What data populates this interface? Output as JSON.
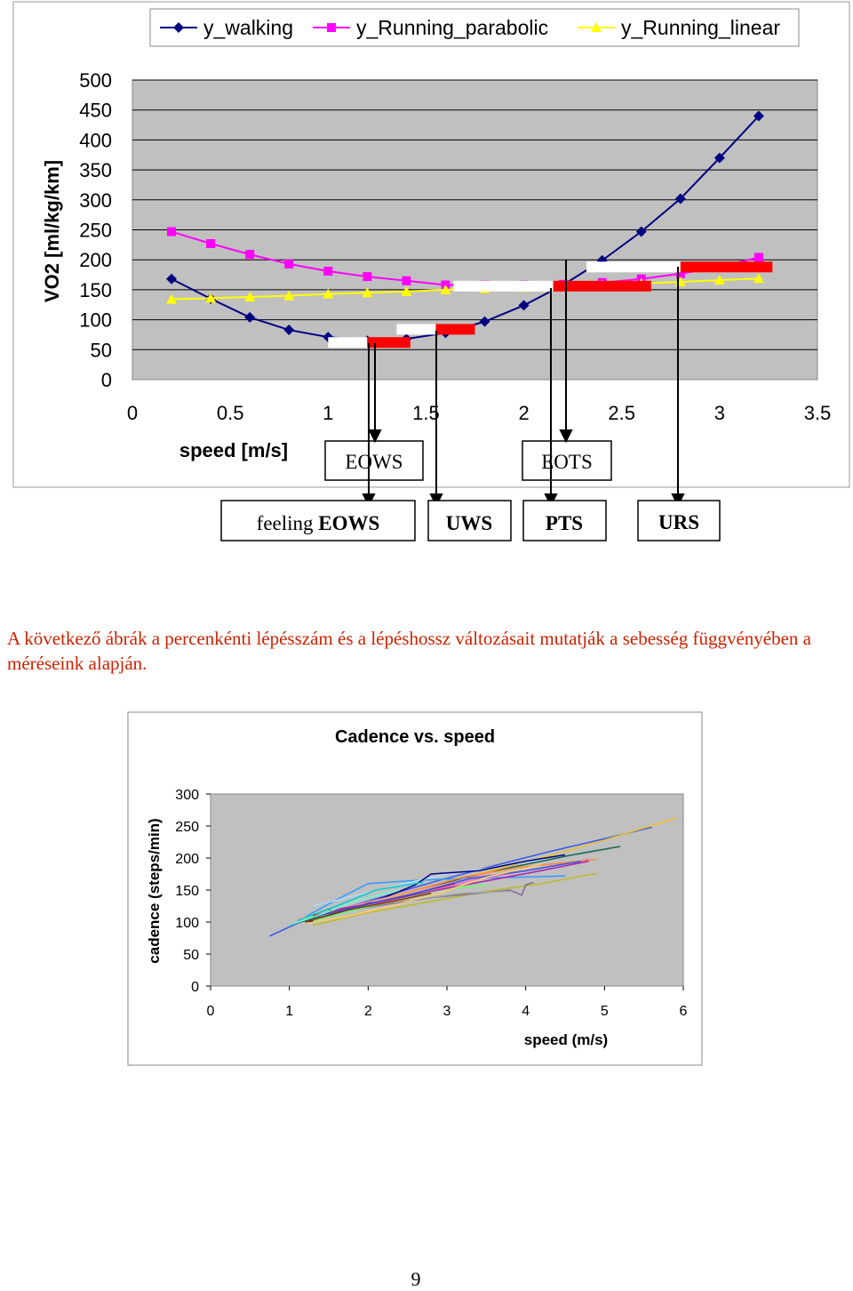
{
  "chart_data": [
    {
      "type": "line",
      "ylabel": "VO2 [ml/kg/km]",
      "xlabel": "speed [m/s]",
      "xlim": [
        0,
        3.5
      ],
      "ylim": [
        0,
        500
      ],
      "x_ticks": [
        "0",
        "0.5",
        "1",
        "1.5",
        "2",
        "2.5",
        "3",
        "3.5"
      ],
      "y_ticks": [
        "0",
        "50",
        "100",
        "150",
        "200",
        "250",
        "300",
        "350",
        "400",
        "450",
        "500"
      ],
      "grid": true,
      "legend_position": "top",
      "series": [
        {
          "name": "y_walking",
          "color": "#000080",
          "marker": "diamond",
          "x": [
            0.2,
            0.4,
            0.6,
            0.8,
            1.0,
            1.2,
            1.4,
            1.6,
            1.8,
            2.0,
            2.2,
            2.4,
            2.6,
            2.8,
            3.0,
            3.2
          ],
          "y": [
            168,
            135,
            104,
            83,
            71,
            65,
            68,
            78,
            97,
            124,
            158,
            199,
            247,
            302,
            370,
            440
          ]
        },
        {
          "name": "y_Running_parabolic",
          "color": "#ff00ff",
          "marker": "square",
          "x": [
            0.2,
            0.4,
            0.6,
            0.8,
            1.0,
            1.2,
            1.4,
            1.6,
            1.8,
            2.0,
            2.2,
            2.4,
            2.6,
            2.8,
            3.0,
            3.2
          ],
          "y": [
            247,
            227,
            209,
            193,
            181,
            172,
            165,
            158,
            158,
            158,
            159,
            162,
            168,
            177,
            188,
            204
          ]
        },
        {
          "name": "y_Running_linear",
          "color": "#ffff00",
          "marker": "triangle",
          "x": [
            0.2,
            0.4,
            0.6,
            0.8,
            1.0,
            1.2,
            1.4,
            1.6,
            1.8,
            2.0,
            2.2,
            2.4,
            2.6,
            2.8,
            3.0,
            3.2
          ],
          "y": [
            134,
            136,
            138,
            140,
            143,
            145,
            147,
            150,
            152,
            154,
            156,
            158,
            161,
            163,
            166,
            169
          ]
        }
      ],
      "speed_bars": [
        {
          "x0": 1.0,
          "x1": 1.2,
          "y": 62,
          "color": "#ffffff"
        },
        {
          "x0": 1.2,
          "x1": 1.42,
          "y": 62,
          "color": "#ff0000"
        },
        {
          "x0": 1.35,
          "x1": 1.55,
          "y": 84,
          "color": "#ffffff"
        },
        {
          "x0": 1.55,
          "x1": 1.75,
          "y": 84,
          "color": "#ff0000"
        },
        {
          "x0": 1.64,
          "x1": 2.15,
          "y": 156,
          "color": "#ffffff"
        },
        {
          "x0": 2.15,
          "x1": 2.65,
          "y": 156,
          "color": "#ff0000"
        },
        {
          "x0": 2.32,
          "x1": 2.8,
          "y": 188,
          "color": "#ffffff"
        },
        {
          "x0": 2.8,
          "x1": 3.27,
          "y": 188,
          "color": "#ff0000"
        }
      ]
    },
    {
      "type": "line",
      "title": "Cadence vs. speed",
      "xlabel": "speed (m/s)",
      "ylabel": "cadence (steps/min)",
      "xlim": [
        0,
        6
      ],
      "ylim": [
        0,
        300
      ],
      "x_ticks": [
        "0",
        "1",
        "2",
        "3",
        "4",
        "5",
        "6"
      ],
      "y_ticks": [
        "0",
        "50",
        "100",
        "150",
        "200",
        "250",
        "300"
      ],
      "grid": false,
      "series": [
        {
          "color": "#3355ee",
          "x": [
            0.75,
            1.1,
            1.6,
            2.2,
            2.9,
            3.6,
            4.3,
            5.0,
            5.6
          ],
          "y": [
            78,
            98,
            118,
            140,
            165,
            188,
            210,
            230,
            248
          ]
        },
        {
          "color": "#f0c020",
          "x": [
            1.2,
            1.8,
            2.5,
            3.3,
            4.2,
            5.0,
            5.9
          ],
          "y": [
            100,
            120,
            145,
            172,
            200,
            228,
            262
          ]
        },
        {
          "color": "#116655",
          "x": [
            1.0,
            1.6,
            2.3,
            3.0,
            3.8,
            4.6,
            5.2
          ],
          "y": [
            95,
            118,
            140,
            162,
            185,
            205,
            218
          ]
        },
        {
          "color": "#bbbb22",
          "x": [
            1.3,
            2.0,
            2.8,
            3.5,
            4.2,
            4.9
          ],
          "y": [
            95,
            115,
            132,
            148,
            160,
            176
          ]
        },
        {
          "color": "#3399ff",
          "x": [
            1.2,
            1.6,
            2.0,
            2.6,
            3.2,
            3.9,
            4.5
          ],
          "y": [
            108,
            135,
            160,
            165,
            168,
            170,
            172
          ]
        },
        {
          "color": "#ff66cc",
          "x": [
            1.4,
            2.0,
            2.7,
            3.3,
            4.0,
            4.8
          ],
          "y": [
            105,
            125,
            145,
            165,
            180,
            198
          ]
        },
        {
          "color": "#886699",
          "x": [
            1.5,
            2.1,
            2.8,
            3.4,
            3.8,
            3.95,
            4.0,
            4.1
          ],
          "y": [
            112,
            125,
            138,
            145,
            150,
            142,
            158,
            162
          ]
        },
        {
          "color": "#ff8833",
          "x": [
            1.3,
            1.9,
            2.6,
            3.2,
            3.9,
            4.9
          ],
          "y": [
            110,
            128,
            150,
            170,
            185,
            198
          ]
        },
        {
          "color": "#aaddff",
          "x": [
            1.3,
            1.8,
            2.4,
            3.0,
            3.6,
            4.3
          ],
          "y": [
            125,
            140,
            158,
            175,
            185,
            200
          ]
        },
        {
          "color": "#000080",
          "x": [
            1.2,
            1.7,
            2.2,
            2.6,
            2.8,
            3.4,
            4.0,
            4.5
          ],
          "y": [
            98,
            118,
            138,
            158,
            175,
            180,
            195,
            205
          ]
        },
        {
          "color": "#99aa99",
          "x": [
            1.4,
            2.0,
            2.6,
            3.2,
            3.8
          ],
          "y": [
            112,
            125,
            135,
            145,
            148
          ]
        },
        {
          "color": "#66ff66",
          "x": [
            1.3,
            1.8,
            2.4,
            2.9,
            3.5
          ],
          "y": [
            102,
            118,
            135,
            150,
            158
          ]
        },
        {
          "color": "#883300",
          "x": [
            1.2,
            1.7,
            2.3,
            2.8
          ],
          "y": [
            100,
            118,
            132,
            145
          ]
        },
        {
          "color": "#ff9999",
          "x": [
            1.1,
            1.7,
            2.3,
            3.0,
            3.6
          ],
          "y": [
            105,
            122,
            140,
            160,
            178
          ]
        },
        {
          "color": "#00cccc",
          "x": [
            1.1,
            1.6,
            2.1,
            2.7
          ],
          "y": [
            102,
            125,
            150,
            162
          ]
        },
        {
          "color": "#aa22aa",
          "x": [
            1.5,
            2.1,
            2.8,
            3.4,
            4.1,
            4.8
          ],
          "y": [
            118,
            130,
            148,
            162,
            178,
            195
          ]
        },
        {
          "color": "#cc2222",
          "x": [
            1.3,
            1.9,
            2.5,
            3.1
          ],
          "y": [
            110,
            125,
            142,
            160
          ]
        },
        {
          "color": "#3355ee",
          "x": [
            1.3,
            1.9,
            2.6,
            3.3,
            4.0,
            4.7
          ],
          "y": [
            108,
            125,
            145,
            168,
            180,
            195
          ]
        },
        {
          "color": "#ffcc66",
          "x": [
            1.2,
            1.7,
            2.3,
            2.9,
            3.5,
            4.2
          ],
          "y": [
            98,
            108,
            125,
            145,
            170,
            190
          ]
        },
        {
          "color": "#66ffcc",
          "x": [
            1.0,
            1.4,
            1.9,
            2.4
          ],
          "y": [
            95,
            112,
            135,
            150
          ]
        }
      ]
    }
  ],
  "legend": {
    "walking": "y_walking",
    "running_parabolic": "y_Running_parabolic",
    "running_linear": "y_Running_linear"
  },
  "boxes": {
    "eows": "EOWS",
    "eots": "EOTS",
    "feeling_prefix": "feeling ",
    "feeling_eows": "EOWS",
    "uws": "UWS",
    "pts": "PTS",
    "urs": "URS"
  },
  "paragraph": "A következő ábrák a percenkénti lépésszám és a lépéshossz változásait mutatják a sebesség függvényében a méréseink alapján.",
  "page_number": "9"
}
